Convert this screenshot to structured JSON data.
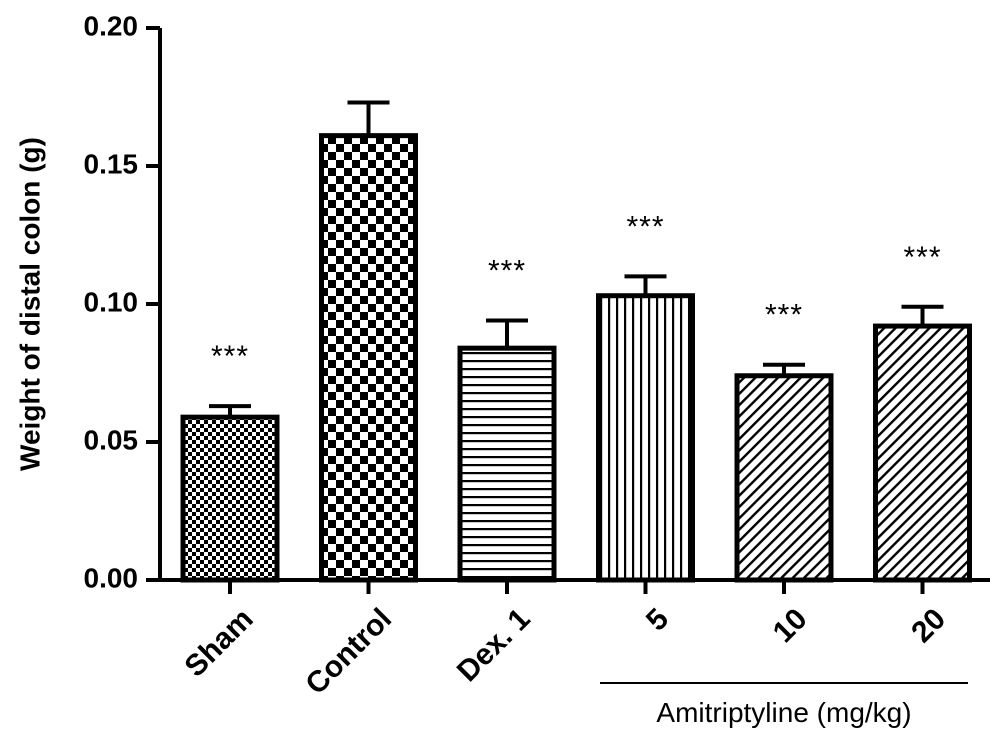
{
  "chart_data": {
    "type": "bar",
    "title": "",
    "xlabel": "",
    "ylabel": "Weight of distal colon (g)",
    "ylim": [
      0,
      0.2
    ],
    "yticks": [
      "0.00",
      "0.05",
      "0.10",
      "0.15",
      "0.20"
    ],
    "ytick_values": [
      0,
      0.05,
      0.1,
      0.15,
      0.2
    ],
    "categories": [
      "Sham",
      "Control",
      "Dex. 1",
      "5",
      "10",
      "20"
    ],
    "values": [
      0.059,
      0.161,
      0.084,
      0.103,
      0.074,
      0.092
    ],
    "errors": [
      0.004,
      0.012,
      0.01,
      0.007,
      0.004,
      0.007
    ],
    "significance": [
      "***",
      "",
      "***",
      "***",
      "***",
      "***"
    ],
    "patterns": [
      "fine-check",
      "checkerboard",
      "horizontal-lines",
      "vertical-lines",
      "diagonal-lines",
      "diagonal-lines"
    ],
    "group_label": "Amitriptyline (mg/kg)",
    "group_categories": [
      "5",
      "10",
      "20"
    ],
    "grid": false,
    "colors": {
      "ink": "#000000",
      "background": "#ffffff"
    }
  }
}
